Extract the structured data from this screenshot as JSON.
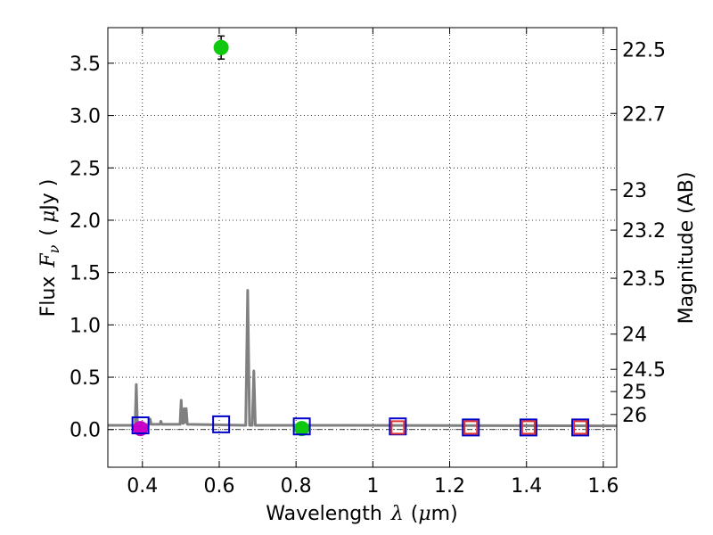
{
  "chart_data": {
    "type": "scatter",
    "xlabel_prefix": "Wavelength",
    "xlabel_symbol": "λ",
    "xlabel_unit_open": "(",
    "xlabel_unit_mu": "μ",
    "xlabel_unit_rest": "m)",
    "ylabel_prefix": "Flux",
    "ylabel_symbol": "F",
    "ylabel_sub": "ν",
    "ylabel_unit_open": "(",
    "ylabel_unit_mu": "μ",
    "ylabel_unit_rest": "Jy )",
    "y2label": "Magnitude (AB)",
    "xlim": [
      0.31,
      1.635
    ],
    "ylim": [
      -0.36,
      3.84
    ],
    "grid": true,
    "x_ticks": [
      {
        "value": 0.4,
        "label": "0.4"
      },
      {
        "value": 0.6,
        "label": "0.6"
      },
      {
        "value": 0.8,
        "label": "0.8"
      },
      {
        "value": 1.0,
        "label": "1"
      },
      {
        "value": 1.2,
        "label": "1.2"
      },
      {
        "value": 1.4,
        "label": "1.4"
      },
      {
        "value": 1.6,
        "label": "1.6"
      }
    ],
    "y_ticks": [
      {
        "value": 0.0,
        "label": "0.0"
      },
      {
        "value": 0.5,
        "label": "0.5"
      },
      {
        "value": 1.0,
        "label": "1.0"
      },
      {
        "value": 1.5,
        "label": "1.5"
      },
      {
        "value": 2.0,
        "label": "2.0"
      },
      {
        "value": 2.5,
        "label": "2.5"
      },
      {
        "value": 3.0,
        "label": "3.0"
      },
      {
        "value": 3.5,
        "label": "3.5"
      }
    ],
    "mag_ticks": [
      {
        "mag": 22.5,
        "label": "22.5"
      },
      {
        "mag": 22.7,
        "label": "22.7"
      },
      {
        "mag": 23,
        "label": "23"
      },
      {
        "mag": 23.2,
        "label": "23.2"
      },
      {
        "mag": 23.5,
        "label": "23.5"
      },
      {
        "mag": 24,
        "label": "24"
      },
      {
        "mag": 24.5,
        "label": "24.5"
      },
      {
        "mag": 25,
        "label": "25"
      },
      {
        "mag": 26,
        "label": "26"
      }
    ],
    "baseline": 0.0,
    "model_spectrum": {
      "name": "model SED",
      "color": "#808080",
      "points": [
        [
          0.31,
          0.04
        ],
        [
          0.381,
          0.04
        ],
        [
          0.384,
          0.43
        ],
        [
          0.387,
          0.04
        ],
        [
          0.418,
          0.05
        ],
        [
          0.42,
          0.1
        ],
        [
          0.423,
          0.05
        ],
        [
          0.446,
          0.05
        ],
        [
          0.448,
          0.08
        ],
        [
          0.451,
          0.05
        ],
        [
          0.498,
          0.05
        ],
        [
          0.501,
          0.28
        ],
        [
          0.504,
          0.06
        ],
        [
          0.507,
          0.06
        ],
        [
          0.509,
          0.2
        ],
        [
          0.512,
          0.07
        ],
        [
          0.514,
          0.2
        ],
        [
          0.517,
          0.05
        ],
        [
          0.669,
          0.04
        ],
        [
          0.674,
          1.33
        ],
        [
          0.679,
          0.04
        ],
        [
          0.686,
          0.04
        ],
        [
          0.69,
          0.56
        ],
        [
          0.694,
          0.04
        ],
        [
          0.9,
          0.04
        ],
        [
          1.635,
          0.035
        ]
      ]
    },
    "series": [
      {
        "name": "observed (green)",
        "color": "#11c811",
        "marker": "circle",
        "points": [
          {
            "x": 0.605,
            "y": 3.65,
            "err": 0.11
          },
          {
            "x": 0.815,
            "y": 0.01,
            "err": 0.02
          }
        ]
      },
      {
        "name": "observed (magenta)",
        "color": "#c800c8",
        "marker": "circle",
        "points": [
          {
            "x": 0.395,
            "y": 0.01,
            "err": 0.02
          }
        ]
      },
      {
        "name": "model photometry (blue)",
        "color": "#0000cc",
        "marker": "square",
        "points": [
          {
            "x": 0.395,
            "y": 0.04
          },
          {
            "x": 0.605,
            "y": 0.05
          },
          {
            "x": 0.815,
            "y": 0.03
          },
          {
            "x": 1.065,
            "y": 0.03
          },
          {
            "x": 1.255,
            "y": 0.02
          },
          {
            "x": 1.405,
            "y": 0.02
          },
          {
            "x": 1.54,
            "y": 0.02
          }
        ]
      },
      {
        "name": "model photometry (red)",
        "color": "#e03030",
        "marker": "square",
        "points": [
          {
            "x": 1.065,
            "y": 0.02
          },
          {
            "x": 1.255,
            "y": 0.02
          },
          {
            "x": 1.405,
            "y": 0.02
          },
          {
            "x": 1.54,
            "y": 0.02
          }
        ]
      }
    ]
  }
}
